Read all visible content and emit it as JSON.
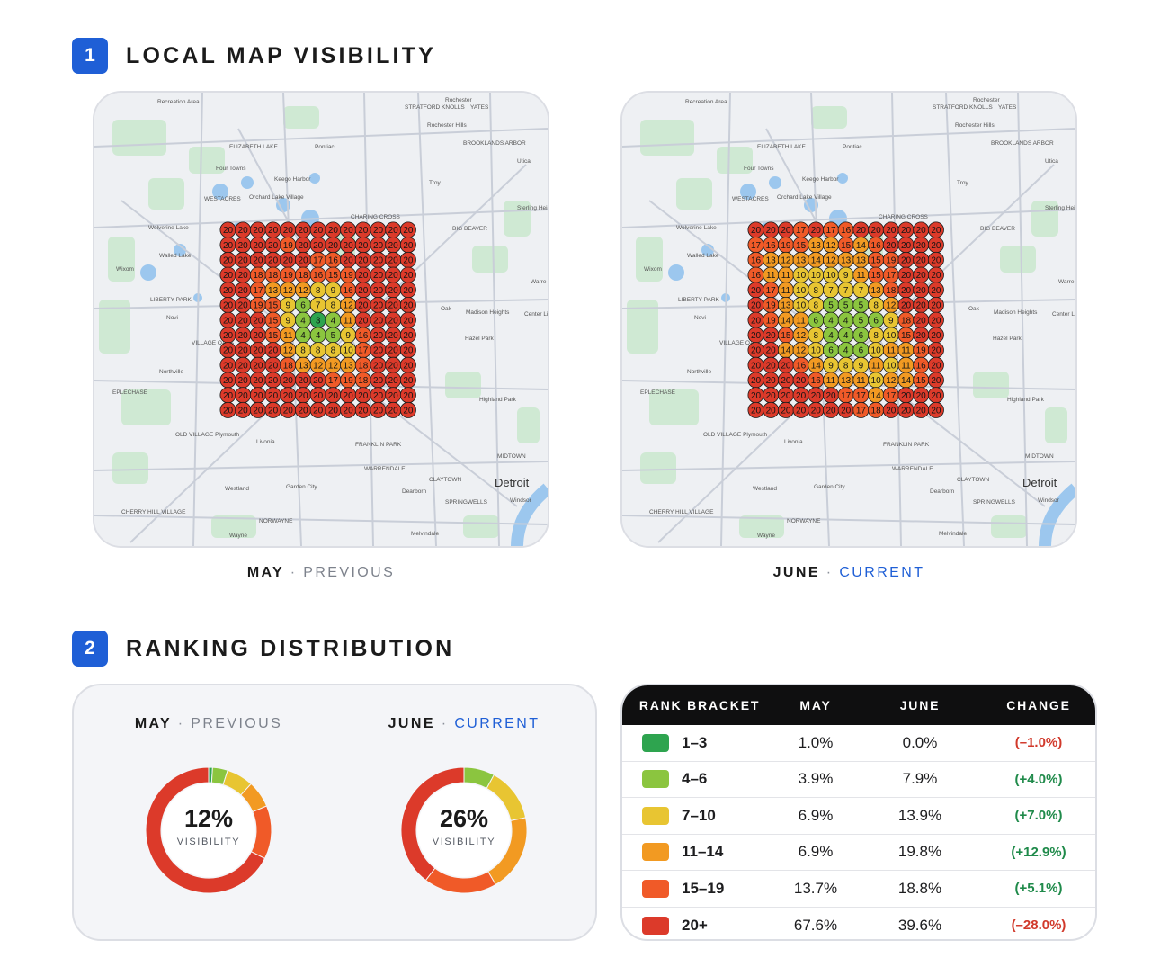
{
  "sections": [
    {
      "num": "1",
      "title": "LOCAL MAP VISIBILITY"
    },
    {
      "num": "2",
      "title": "RANKING DISTRIBUTION"
    }
  ],
  "colors": {
    "accent": "#1f5fd6",
    "rank_1_3": "#2ea44f",
    "rank_4_6": "#8bc53f",
    "rank_7_10": "#e8c532",
    "rank_11_14": "#f29a22",
    "rank_15_19": "#f05a28",
    "rank_20_plus": "#dc3a2a"
  },
  "maps": [
    {
      "period": "MAY",
      "separator": "·",
      "status": "PREVIOUS",
      "grid": [
        [
          20,
          20,
          20,
          20,
          20,
          20,
          20,
          20,
          20,
          20,
          20,
          20,
          20
        ],
        [
          20,
          20,
          20,
          20,
          19,
          20,
          20,
          20,
          20,
          20,
          20,
          20,
          20
        ],
        [
          20,
          20,
          20,
          20,
          20,
          20,
          17,
          16,
          20,
          20,
          20,
          20,
          20
        ],
        [
          20,
          20,
          18,
          18,
          19,
          18,
          16,
          15,
          19,
          20,
          20,
          20,
          20
        ],
        [
          20,
          20,
          17,
          13,
          12,
          12,
          8,
          9,
          16,
          20,
          20,
          20,
          20
        ],
        [
          20,
          20,
          19,
          15,
          9,
          6,
          7,
          8,
          12,
          20,
          20,
          20,
          20
        ],
        [
          20,
          20,
          20,
          15,
          9,
          4,
          3,
          4,
          11,
          20,
          20,
          20,
          20
        ],
        [
          20,
          20,
          20,
          15,
          11,
          4,
          4,
          5,
          9,
          16,
          20,
          20,
          20
        ],
        [
          20,
          20,
          20,
          20,
          12,
          8,
          8,
          8,
          10,
          17,
          20,
          20,
          20
        ],
        [
          20,
          20,
          20,
          20,
          18,
          13,
          12,
          12,
          13,
          18,
          20,
          20,
          20
        ],
        [
          20,
          20,
          20,
          20,
          20,
          20,
          20,
          17,
          19,
          18,
          20,
          20,
          20
        ],
        [
          20,
          20,
          20,
          20,
          20,
          20,
          20,
          20,
          20,
          20,
          20,
          20,
          20
        ],
        [
          20,
          20,
          20,
          20,
          20,
          20,
          20,
          20,
          20,
          20,
          20,
          20,
          20
        ]
      ]
    },
    {
      "period": "JUNE",
      "separator": "·",
      "status": "CURRENT",
      "grid": [
        [
          20,
          20,
          20,
          17,
          20,
          17,
          16,
          20,
          20,
          20,
          20,
          20,
          20
        ],
        [
          17,
          16,
          19,
          15,
          13,
          12,
          15,
          14,
          16,
          20,
          20,
          20,
          20
        ],
        [
          16,
          13,
          12,
          13,
          14,
          12,
          13,
          13,
          15,
          19,
          20,
          20,
          20
        ],
        [
          16,
          11,
          11,
          10,
          10,
          10,
          9,
          11,
          15,
          17,
          20,
          20,
          20
        ],
        [
          20,
          17,
          11,
          10,
          8,
          7,
          7,
          7,
          13,
          18,
          20,
          20,
          20
        ],
        [
          20,
          19,
          13,
          10,
          8,
          5,
          5,
          5,
          8,
          12,
          20,
          20,
          20
        ],
        [
          20,
          19,
          14,
          11,
          6,
          4,
          4,
          5,
          6,
          9,
          18,
          20,
          20
        ],
        [
          20,
          20,
          15,
          12,
          8,
          4,
          4,
          6,
          8,
          10,
          15,
          20,
          20
        ],
        [
          20,
          20,
          14,
          12,
          10,
          6,
          4,
          6,
          10,
          11,
          11,
          19,
          20
        ],
        [
          20,
          20,
          20,
          16,
          14,
          9,
          8,
          9,
          11,
          10,
          11,
          16,
          20
        ],
        [
          20,
          20,
          20,
          20,
          16,
          11,
          13,
          11,
          10,
          12,
          14,
          15,
          20
        ],
        [
          20,
          20,
          20,
          20,
          20,
          20,
          17,
          17,
          14,
          17,
          20,
          20,
          20
        ],
        [
          20,
          20,
          20,
          20,
          20,
          20,
          20,
          17,
          18,
          20,
          20,
          20,
          20
        ]
      ]
    }
  ],
  "map_labels": {
    "places": [
      "Recreation Area",
      "STRATFORD KNOLLS",
      "Rochester",
      "YATES",
      "Rochester Hills",
      "ELIZABETH LAKE",
      "Pontiac",
      "BROOKLANDS ARBOR",
      "Four Towns",
      "Utica",
      "Keego Harbor",
      "Troy",
      "WESTACRES",
      "Orchard Lake Village",
      "Sterling Heights",
      "Wolverine Lake",
      "CHARING CROSS",
      "BIG BEAVER",
      "Walled Lake",
      "Wixom",
      "Warre",
      "LIBERTY PARK",
      "Novi",
      "Oak",
      "Madison Heights",
      "Center Line",
      "VILLAGE OAKS",
      "Hazel Park",
      "Northville",
      "EPLECHASE",
      "Highland Park",
      "OLD VILLAGE Plymouth",
      "Livonia",
      "FRANKLIN PARK",
      "MIDTOWN",
      "WARRENDALE",
      "CLAYTOWN",
      "Westland",
      "Garden City",
      "Dearborn",
      "Detroit",
      "SPRINGWELLS",
      "Windsor",
      "CHERRY HILL VILLAGE",
      "NORWAYNE",
      "Wayne",
      "Melvindale"
    ]
  },
  "distribution": {
    "charts": [
      {
        "period": "MAY",
        "separator": "·",
        "status": "PREVIOUS",
        "center_value": "12%",
        "center_label": "VISIBILITY"
      },
      {
        "period": "JUNE",
        "separator": "·",
        "status": "CURRENT",
        "center_value": "26%",
        "center_label": "VISIBILITY"
      }
    ]
  },
  "table": {
    "headers": [
      "RANK BRACKET",
      "MAY",
      "JUNE",
      "CHANGE"
    ],
    "rows": [
      {
        "bracket": "1–3",
        "may": "1.0%",
        "june": "0.0%",
        "change": "(–1.0%)",
        "trend": "neg",
        "color": "#2ea44f"
      },
      {
        "bracket": "4–6",
        "may": "3.9%",
        "june": "7.9%",
        "change": "(+4.0%)",
        "trend": "pos",
        "color": "#8bc53f"
      },
      {
        "bracket": "7–10",
        "may": "6.9%",
        "june": "13.9%",
        "change": "(+7.0%)",
        "trend": "pos",
        "color": "#e8c532"
      },
      {
        "bracket": "11–14",
        "may": "6.9%",
        "june": "19.8%",
        "change": "(+12.9%)",
        "trend": "pos",
        "color": "#f29a22"
      },
      {
        "bracket": "15–19",
        "may": "13.7%",
        "june": "18.8%",
        "change": "(+5.1%)",
        "trend": "pos",
        "color": "#f05a28"
      },
      {
        "bracket": "20+",
        "may": "67.6%",
        "june": "39.6%",
        "change": "(–28.0%)",
        "trend": "neg",
        "color": "#dc3a2a"
      }
    ]
  },
  "chart_data": [
    {
      "type": "pie",
      "categories": [
        "1–3",
        "4–6",
        "7–10",
        "11–14",
        "15–19",
        "20+"
      ],
      "series": [
        {
          "name": "MAY",
          "values": [
            1.0,
            3.9,
            6.9,
            6.9,
            13.7,
            67.6
          ]
        },
        {
          "name": "JUNE",
          "values": [
            0.0,
            7.9,
            13.9,
            19.8,
            18.8,
            39.6
          ]
        }
      ]
    },
    {
      "type": "heatmap",
      "rows": 13,
      "cols": 13,
      "series": [
        {
          "name": "MAY"
        },
        {
          "name": "JUNE"
        }
      ]
    }
  ]
}
